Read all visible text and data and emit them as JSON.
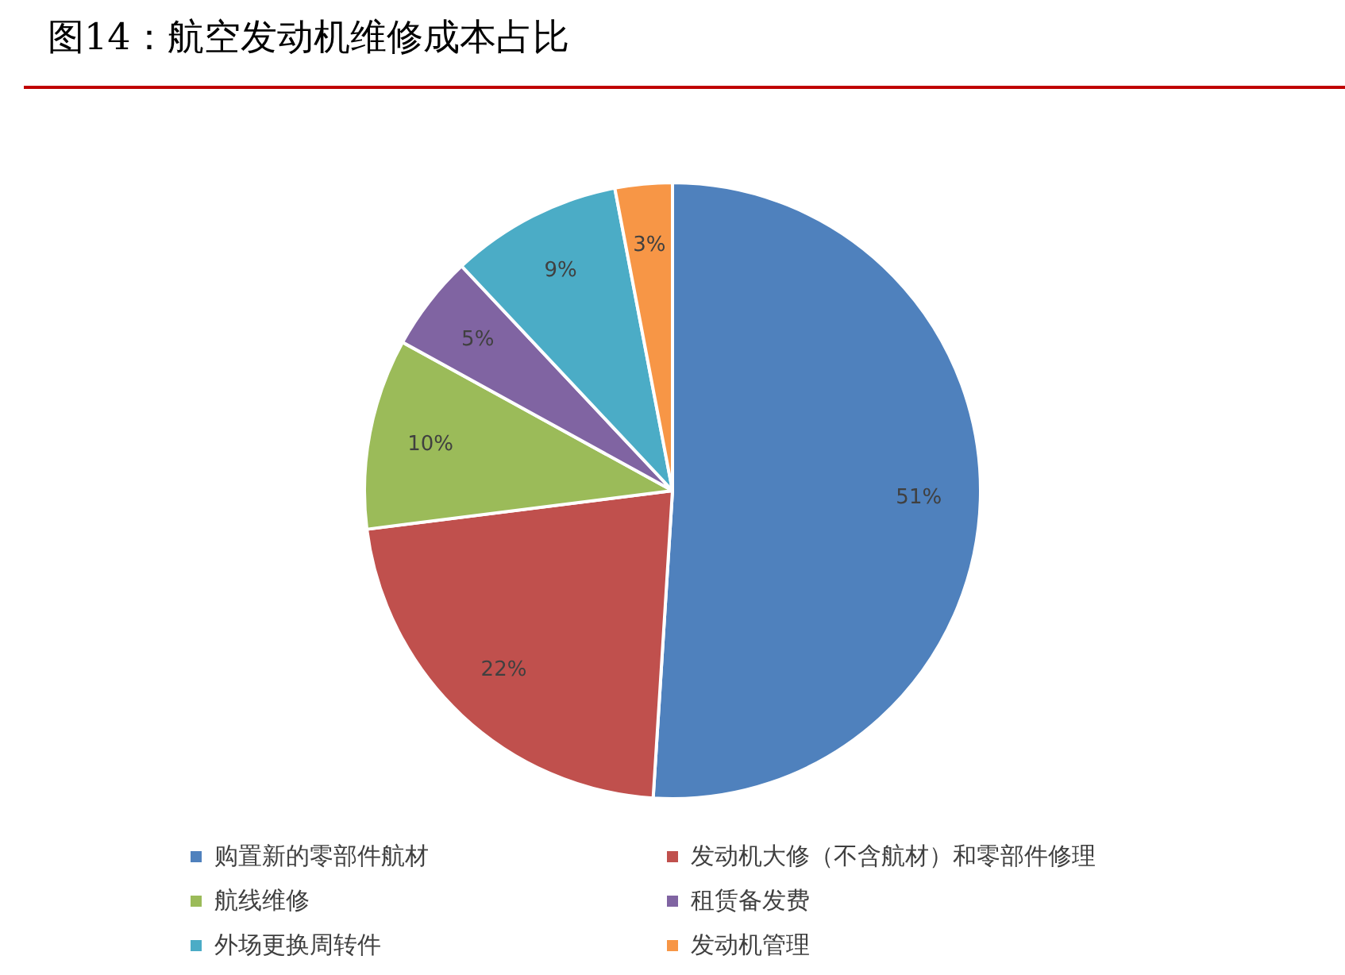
{
  "chart_data": {
    "type": "pie",
    "title": "图14：航空发动机维修成本占比",
    "categories": [
      "购置新的零部件航材",
      "发动机大修（不含航材）和零部件修理",
      "航线维修",
      "租赁备发费",
      "外场更换周转件",
      "发动机管理"
    ],
    "values": [
      51,
      22,
      10,
      5,
      9,
      3
    ],
    "colors": [
      "#4f81bd",
      "#c0504d",
      "#9bbb59",
      "#8064a2",
      "#4bacc6",
      "#f79646"
    ],
    "value_labels": [
      "51%",
      "22%",
      "10%",
      "5%",
      "9%",
      "3%"
    ],
    "legend": "bottom"
  }
}
